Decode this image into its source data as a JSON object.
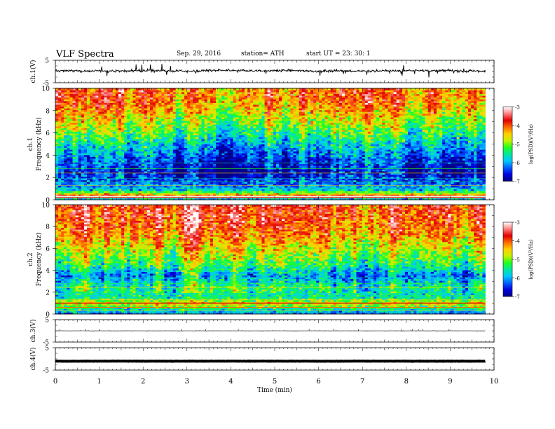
{
  "header": {
    "title": "VLF  Spectra",
    "date": "Sep. 29, 2016",
    "station": "station= ATH",
    "start": "start  UT  =    23: 30: 1"
  },
  "chart_data": [
    {
      "type": "line",
      "name": "ch1-waveform",
      "ylabel": "ch.1(V)",
      "ylim": [
        -5,
        5
      ],
      "yticks": [
        5,
        -5
      ],
      "xlim": [
        0,
        10
      ],
      "trace": {
        "baseline": 0.3,
        "noise": 0.35,
        "spike_amp": 2.8,
        "t_end": 9.8
      }
    },
    {
      "type": "heatmap",
      "name": "ch1-spectrogram",
      "ylabel_top": "ch.1",
      "ylabel": "Frequency (kHz)",
      "ylim": [
        0,
        10
      ],
      "yticks": [
        0,
        2,
        4,
        6,
        8,
        10
      ],
      "xlim": [
        0,
        10
      ],
      "t_end": 9.8,
      "colorbar": {
        "label": "log(PSD)(V²/Hz)",
        "range": [
          -7,
          -3
        ],
        "ticks": [
          "-3",
          "-4",
          "-5",
          "-6",
          "-7"
        ]
      },
      "profile": [
        [
          0,
          -6.2
        ],
        [
          0.4,
          -4.0
        ],
        [
          0.9,
          -5.8
        ],
        [
          1.5,
          -6.2
        ],
        [
          2.5,
          -6.6
        ],
        [
          3.5,
          -6.3
        ],
        [
          4.5,
          -5.9
        ],
        [
          5.5,
          -5.4
        ],
        [
          6.5,
          -4.9
        ],
        [
          7.5,
          -4.5
        ],
        [
          8.5,
          -4.1
        ],
        [
          9.3,
          -3.9
        ],
        [
          10,
          -4.0
        ]
      ]
    },
    {
      "type": "heatmap",
      "name": "ch2-spectrogram",
      "ylabel_top": "ch.2",
      "ylabel": "Frequency (kHz)",
      "ylim": [
        0,
        10
      ],
      "yticks": [
        0,
        2,
        4,
        6,
        8,
        10
      ],
      "xlim": [
        0,
        10
      ],
      "t_end": 9.8,
      "colorbar": {
        "label": "log(PSD)(V²/Hz)",
        "range": [
          -7,
          -3
        ],
        "ticks": [
          "-3",
          "-4",
          "-5",
          "-6",
          "-7"
        ]
      },
      "profile": [
        [
          0,
          -6.2
        ],
        [
          0.5,
          -5.5
        ],
        [
          1.0,
          -4.5
        ],
        [
          1.5,
          -5.6
        ],
        [
          2.5,
          -5.4
        ],
        [
          3.5,
          -6.1
        ],
        [
          4.5,
          -5.3
        ],
        [
          5.5,
          -4.9
        ],
        [
          6.5,
          -4.5
        ],
        [
          7.5,
          -4.1
        ],
        [
          8.5,
          -3.9
        ],
        [
          10,
          -3.8
        ]
      ]
    },
    {
      "type": "line",
      "name": "ch3-waveform",
      "ylabel": "ch.3(V)",
      "ylim": [
        -5,
        5
      ],
      "yticks": [
        5,
        -5
      ],
      "xlim": [
        0,
        10
      ],
      "trace": {
        "baseline": 0,
        "noise": 0.02,
        "spike_amp": 0.15,
        "t_end": 9.8
      }
    },
    {
      "type": "line",
      "name": "ch4-waveform",
      "ylabel": "ch.4(V)",
      "ylim": [
        -5,
        5
      ],
      "yticks": [
        5,
        -5
      ],
      "xlim": [
        0,
        10
      ],
      "trace": {
        "baseline": -1.0,
        "noise": 0.05,
        "spike_amp": 0,
        "t_end": 9.8
      }
    }
  ],
  "xaxis": {
    "label": "Time  (min)",
    "ticks": [
      "0",
      "1",
      "2",
      "3",
      "4",
      "5",
      "6",
      "7",
      "8",
      "9",
      "10"
    ]
  },
  "colormap": [
    "#000080",
    "#0000e0",
    "#0060ff",
    "#00c8ff",
    "#00e8a0",
    "#20ff20",
    "#c8f000",
    "#ffd000",
    "#ff6a00",
    "#e00000",
    "#ff8080",
    "#ffffff"
  ]
}
